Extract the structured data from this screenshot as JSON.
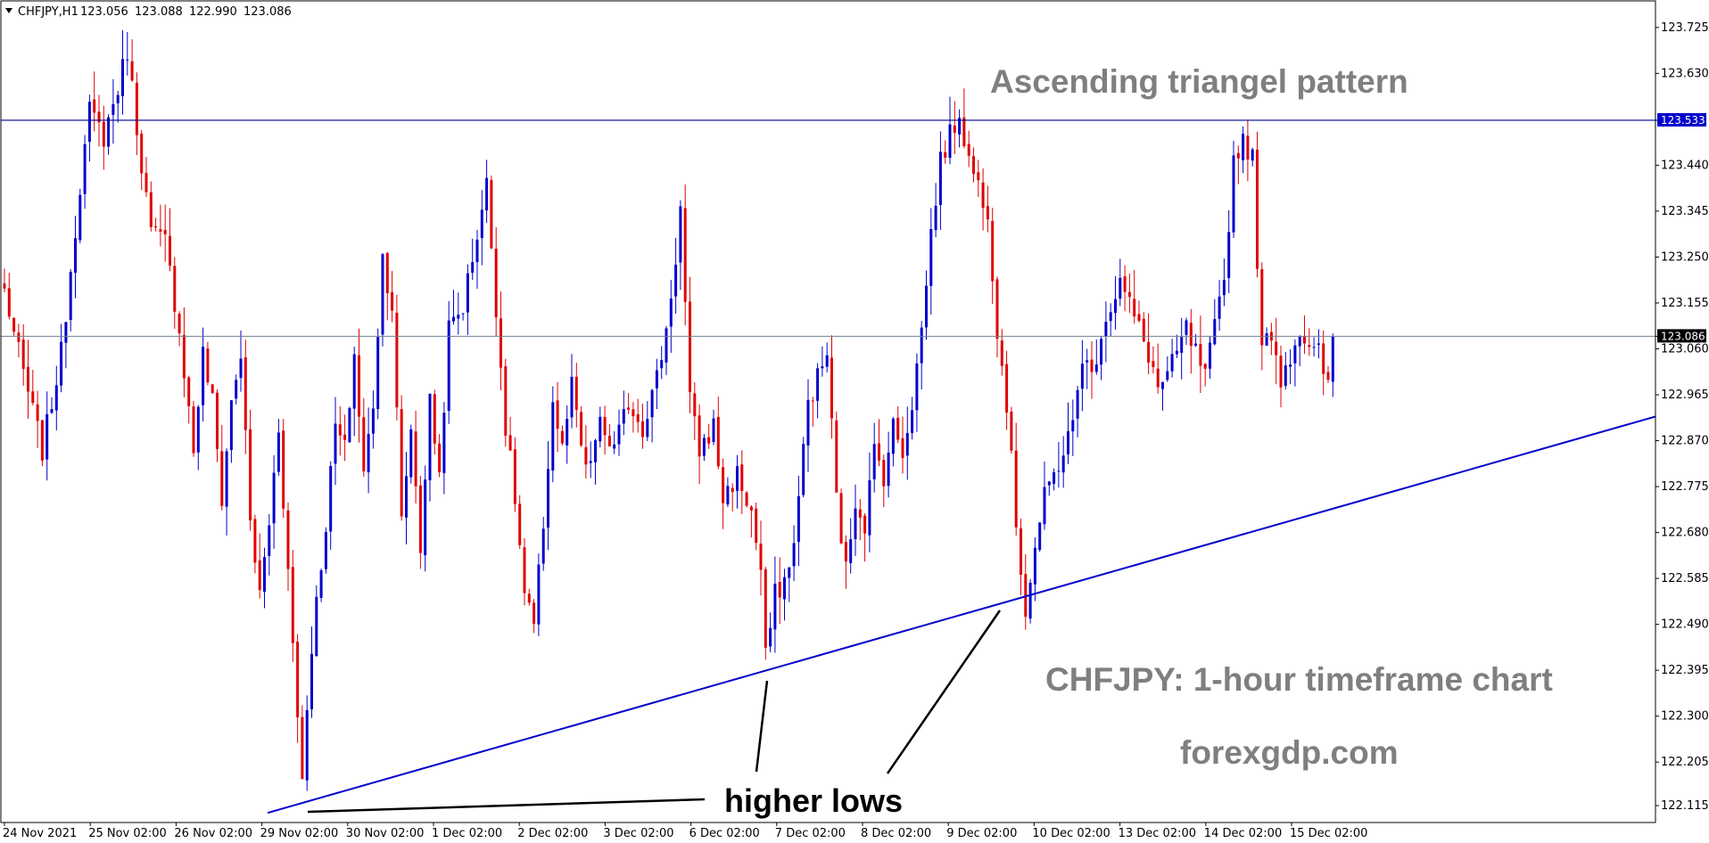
{
  "header": {
    "symbol": "CHFJPY,H1",
    "open": "123.056",
    "high": "123.088",
    "low": "122.990",
    "close": "123.086"
  },
  "colors": {
    "bull": "#0000cc",
    "bear": "#e00000",
    "trendline": "#0000cc",
    "resistance": "#00008b",
    "bid_line": "#708090",
    "annotation_gray": "#7f7f7f",
    "annotation_black": "#000000",
    "resistance_tag": "#0000cc",
    "bid_tag": "#000000"
  },
  "annotations": {
    "title": "Ascending triangel pattern",
    "subtitle": "CHFJPY: 1-hour timeframe chart",
    "site": "forexgdp.com",
    "higher_lows": "higher lows"
  },
  "chart_data": {
    "type": "candlestick",
    "symbol": "CHFJPY",
    "timeframe": "H1",
    "ylim": [
      122.08,
      123.78
    ],
    "y_ticks": [
      "123.725",
      "123.630",
      "123.533",
      "123.440",
      "123.345",
      "123.250",
      "123.155",
      "123.086",
      "123.060",
      "122.965",
      "122.870",
      "122.775",
      "122.680",
      "122.585",
      "122.490",
      "122.395",
      "122.300",
      "122.205",
      "122.115"
    ],
    "x_ticks": [
      "24 Nov 2021",
      "25 Nov 02:00",
      "26 Nov 02:00",
      "29 Nov 02:00",
      "30 Nov 02:00",
      "1 Dec 02:00",
      "2 Dec 02:00",
      "3 Dec 02:00",
      "6 Dec 02:00",
      "7 Dec 02:00",
      "8 Dec 02:00",
      "9 Dec 02:00",
      "10 Dec 02:00",
      "13 Dec 02:00",
      "14 Dec 02:00",
      "15 Dec 02:00"
    ],
    "resistance_level": 123.533,
    "current_price": 123.086,
    "trendline": {
      "start": {
        "bar": 0,
        "price": 122.1
      },
      "end": {
        "bar": 340,
        "price": 122.92
      }
    },
    "path_anchors": [
      [
        0,
        123.18
      ],
      [
        3,
        123.05
      ],
      [
        8,
        122.85
      ],
      [
        12,
        123.05
      ],
      [
        16,
        123.4
      ],
      [
        18,
        123.55
      ],
      [
        21,
        123.5
      ],
      [
        24,
        123.6
      ],
      [
        26,
        123.68
      ],
      [
        28,
        123.52
      ],
      [
        31,
        123.3
      ],
      [
        34,
        123.28
      ],
      [
        37,
        123.1
      ],
      [
        40,
        122.85
      ],
      [
        42,
        123.05
      ],
      [
        44,
        122.95
      ],
      [
        46,
        122.75
      ],
      [
        48,
        122.95
      ],
      [
        50,
        123.05
      ],
      [
        52,
        122.7
      ],
      [
        54,
        122.55
      ],
      [
        56,
        122.7
      ],
      [
        58,
        122.9
      ],
      [
        60,
        122.6
      ],
      [
        62,
        122.3
      ],
      [
        63,
        122.18
      ],
      [
        65,
        122.45
      ],
      [
        68,
        122.7
      ],
      [
        70,
        122.9
      ],
      [
        72,
        122.85
      ],
      [
        74,
        123.05
      ],
      [
        76,
        122.8
      ],
      [
        78,
        122.95
      ],
      [
        80,
        123.25
      ],
      [
        82,
        123.15
      ],
      [
        84,
        122.7
      ],
      [
        86,
        122.9
      ],
      [
        88,
        122.65
      ],
      [
        90,
        122.95
      ],
      [
        92,
        122.8
      ],
      [
        94,
        123.1
      ],
      [
        97,
        123.15
      ],
      [
        100,
        123.3
      ],
      [
        102,
        123.4
      ],
      [
        104,
        123.15
      ],
      [
        106,
        122.9
      ],
      [
        108,
        122.75
      ],
      [
        110,
        122.55
      ],
      [
        112,
        122.48
      ],
      [
        114,
        122.7
      ],
      [
        116,
        122.95
      ],
      [
        118,
        122.85
      ],
      [
        120,
        122.98
      ],
      [
        123,
        122.8
      ],
      [
        126,
        122.9
      ],
      [
        129,
        122.85
      ],
      [
        132,
        122.95
      ],
      [
        135,
        122.9
      ],
      [
        138,
        123.0
      ],
      [
        140,
        123.1
      ],
      [
        142,
        123.25
      ],
      [
        143,
        123.35
      ],
      [
        145,
        122.95
      ],
      [
        147,
        122.85
      ],
      [
        150,
        122.9
      ],
      [
        152,
        122.75
      ],
      [
        155,
        122.8
      ],
      [
        158,
        122.72
      ],
      [
        160,
        122.6
      ],
      [
        161,
        122.42
      ],
      [
        163,
        122.55
      ],
      [
        166,
        122.6
      ],
      [
        168,
        122.75
      ],
      [
        170,
        122.95
      ],
      [
        172,
        123.0
      ],
      [
        174,
        123.05
      ],
      [
        176,
        122.75
      ],
      [
        178,
        122.6
      ],
      [
        180,
        122.75
      ],
      [
        182,
        122.7
      ],
      [
        184,
        122.85
      ],
      [
        186,
        122.8
      ],
      [
        188,
        122.9
      ],
      [
        190,
        122.85
      ],
      [
        192,
        122.95
      ],
      [
        194,
        123.1
      ],
      [
        196,
        123.3
      ],
      [
        198,
        123.45
      ],
      [
        200,
        123.5
      ],
      [
        202,
        123.55
      ],
      [
        204,
        123.45
      ],
      [
        206,
        123.4
      ],
      [
        208,
        123.35
      ],
      [
        210,
        123.1
      ],
      [
        212,
        122.95
      ],
      [
        214,
        122.7
      ],
      [
        216,
        122.52
      ],
      [
        218,
        122.65
      ],
      [
        220,
        122.75
      ],
      [
        222,
        122.8
      ],
      [
        224,
        122.85
      ],
      [
        226,
        122.9
      ],
      [
        228,
        123.05
      ],
      [
        230,
        123.0
      ],
      [
        232,
        123.1
      ],
      [
        234,
        123.15
      ],
      [
        236,
        123.2
      ],
      [
        238,
        123.15
      ],
      [
        240,
        123.1
      ],
      [
        242,
        123.05
      ],
      [
        244,
        122.98
      ],
      [
        246,
        123.0
      ],
      [
        248,
        123.05
      ],
      [
        250,
        123.1
      ],
      [
        252,
        123.05
      ],
      [
        254,
        123.0
      ],
      [
        256,
        123.1
      ],
      [
        258,
        123.2
      ],
      [
        260,
        123.45
      ],
      [
        262,
        123.5
      ],
      [
        264,
        123.45
      ],
      [
        266,
        123.05
      ],
      [
        268,
        123.1
      ],
      [
        270,
        123.0
      ],
      [
        272,
        123.05
      ],
      [
        274,
        123.1
      ],
      [
        276,
        123.05
      ],
      [
        278,
        123.05
      ],
      [
        280,
        122.98
      ],
      [
        281,
        123.086
      ]
    ]
  }
}
